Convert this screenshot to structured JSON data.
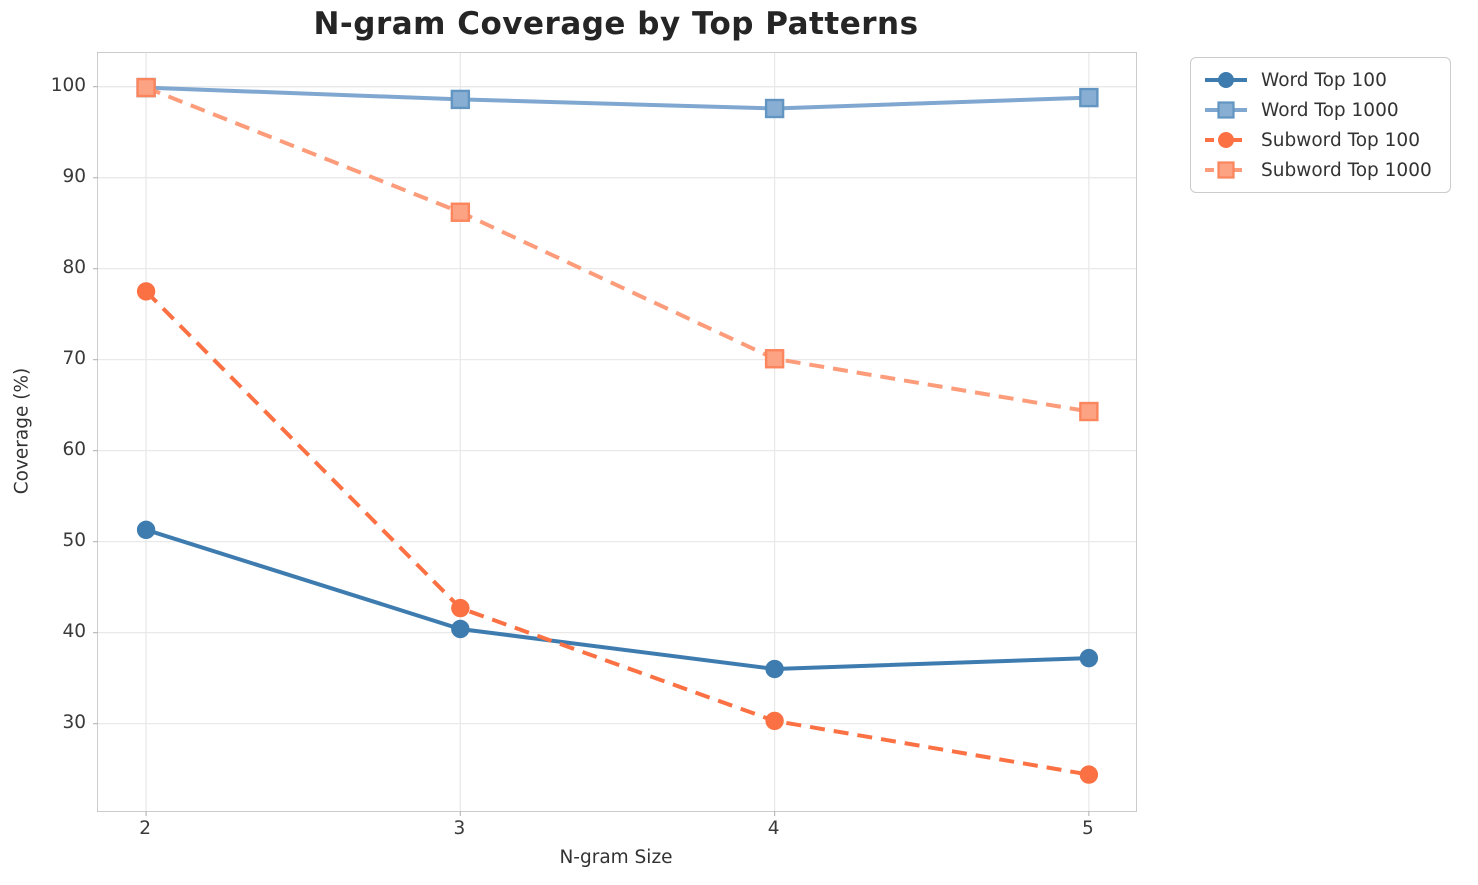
{
  "title": "N-gram Coverage by Top Patterns",
  "chart_data": {
    "type": "line",
    "title": "N-gram Coverage by Top Patterns",
    "xlabel": "N-gram Size",
    "ylabel": "Coverage (%)",
    "x": [
      2,
      3,
      4,
      5
    ],
    "xticks": [
      "2",
      "3",
      "4",
      "5"
    ],
    "yticks": [
      30,
      40,
      50,
      60,
      70,
      80,
      90,
      100
    ],
    "xlim": [
      1.847,
      5.15
    ],
    "ylim": [
      20.4,
      103.7
    ],
    "grid": true,
    "legend_position": "outside-upper-right",
    "series": [
      {
        "name": "Word Top 100",
        "values": [
          51.3,
          40.4,
          36.0,
          37.2
        ],
        "color": "#3E7CB0",
        "marker_fill": "#3E7CB0",
        "marker_edge": "#3E7CB0",
        "style": "solid",
        "marker": "circle"
      },
      {
        "name": "Word Top 1000",
        "values": [
          99.9,
          98.6,
          97.6,
          98.8
        ],
        "color": "#7FA7CF",
        "marker_fill": "#88AFD3",
        "marker_edge": "#6295C2",
        "style": "solid",
        "marker": "square"
      },
      {
        "name": "Subword Top 100",
        "values": [
          77.5,
          42.7,
          30.3,
          24.4
        ],
        "color": "#FB7144",
        "marker_fill": "#FB7144",
        "marker_edge": "#FB7144",
        "style": "dashed",
        "marker": "circle"
      },
      {
        "name": "Subword Top 1000",
        "values": [
          99.9,
          86.2,
          70.1,
          64.3
        ],
        "color": "#FC9C7A",
        "marker_fill": "#FCA384",
        "marker_edge": "#FB855D",
        "style": "dashed",
        "marker": "square"
      }
    ],
    "grid_color": "#e9e9e9",
    "spine_color": "#cccccc",
    "tick_color": "#bbbbbb"
  }
}
